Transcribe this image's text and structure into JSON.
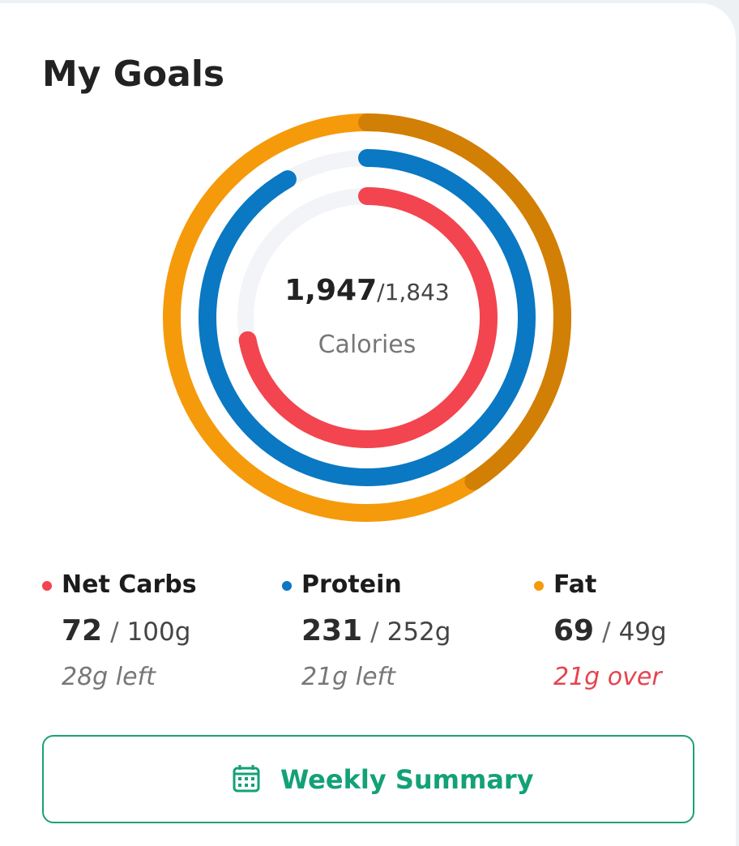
{
  "title": "My Goals",
  "calories": {
    "consumed": {
      "value": 1947,
      "label": "1,947"
    },
    "separator": "/",
    "goal": {
      "value": 1843,
      "label": "1,843"
    },
    "label": "Calories"
  },
  "macros": [
    {
      "name": "Net Carbs",
      "color": "#f2454f",
      "current": 72,
      "separator": "/",
      "goal": 100,
      "goal_label": "100g",
      "status": "28g left",
      "over": false
    },
    {
      "name": "Protein",
      "color": "#0a78c2",
      "current": 231,
      "separator": "/",
      "goal": 252,
      "goal_label": "252g",
      "status": "21g left",
      "over": false
    },
    {
      "name": "Fat",
      "color": "#f59a0a",
      "current": 69,
      "separator": "/",
      "goal": 49,
      "goal_label": "49g",
      "status": "21g over",
      "over": true
    }
  ],
  "button": {
    "label": "Weekly Summary"
  }
}
